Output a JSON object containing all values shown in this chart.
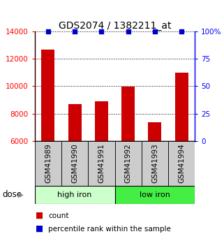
{
  "title": "GDS2074 / 1382211_at",
  "categories": [
    "GSM41989",
    "GSM41990",
    "GSM41991",
    "GSM41992",
    "GSM41993",
    "GSM41994"
  ],
  "bar_values": [
    12650,
    8700,
    8900,
    9950,
    7350,
    11000
  ],
  "bar_color": "#cc0000",
  "dot_color": "#0000cc",
  "ylim_left": [
    6000,
    14000
  ],
  "ylim_right": [
    0,
    100
  ],
  "yticks_left": [
    6000,
    8000,
    10000,
    12000,
    14000
  ],
  "yticks_right": [
    0,
    25,
    50,
    75,
    100
  ],
  "yticklabels_right": [
    "0",
    "25",
    "50",
    "75",
    "100%"
  ],
  "group1_label": "high iron",
  "group2_label": "low iron",
  "dose_label": "dose",
  "legend_count": "count",
  "legend_percentile": "percentile rank within the sample",
  "bg_color": "#ffffff",
  "group1_color": "#ccffcc",
  "group2_color": "#44ee44",
  "tick_area_color": "#cccccc",
  "bar_width": 0.5,
  "title_fontsize": 10,
  "axis_fontsize": 7.5,
  "label_fontsize": 8,
  "legend_fontsize": 7.5
}
